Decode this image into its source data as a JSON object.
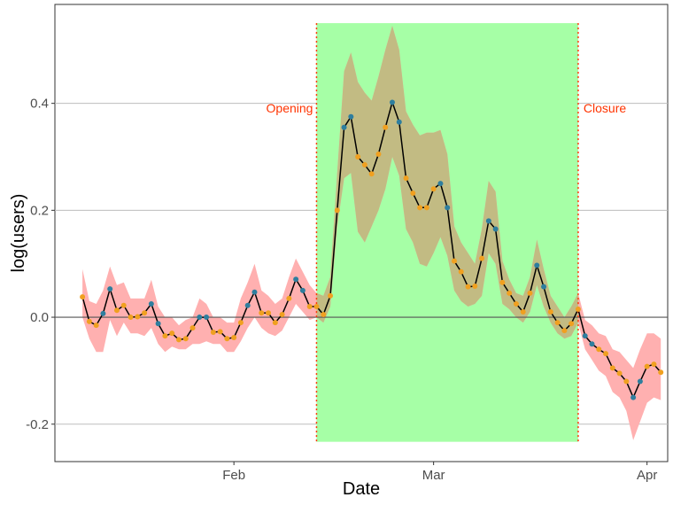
{
  "chart_data": {
    "type": "line",
    "title": "",
    "xlabel": "Date",
    "ylabel": "log(users)",
    "x_ticks": [
      {
        "label": "Feb",
        "x": "2020-02-01"
      },
      {
        "label": "Mar",
        "x": "2020-03-01"
      },
      {
        "label": "Apr",
        "x": "2020-04-01"
      }
    ],
    "y_ticks": [
      {
        "label": "-0.2",
        "value": -0.2
      },
      {
        "label": "0.0",
        "value": 0.0
      },
      {
        "label": "0.2",
        "value": 0.2
      },
      {
        "label": "0.4",
        "value": 0.4
      }
    ],
    "xlim": [
      "2020-01-06",
      "2020-04-04"
    ],
    "ylim": [
      -0.27,
      0.585
    ],
    "grid": "horizontal major",
    "zero_line": true,
    "shaded_period": {
      "start": "2020-02-13",
      "end": "2020-03-22",
      "color": "#a6ffa6"
    },
    "events": [
      {
        "label": "Opening",
        "date": "2020-02-13",
        "color": "#ff3300"
      },
      {
        "label": "Closure",
        "date": "2020-03-22",
        "color": "#ff3300"
      }
    ],
    "colors": {
      "line": "#000000",
      "ci_band": "#ffb0b0",
      "ci_band_inside": "#c2bb83",
      "point_a": "#f0a020",
      "point_b": "#2e7e9e"
    },
    "series": [
      {
        "points": [
          {
            "x": "2020-01-10",
            "y": 0.038,
            "g": "a",
            "lo": 0.0,
            "hi": 0.09
          },
          {
            "x": "2020-01-11",
            "y": -0.008,
            "g": "a",
            "lo": -0.04,
            "hi": 0.03
          },
          {
            "x": "2020-01-12",
            "y": -0.015,
            "g": "a",
            "lo": -0.065,
            "hi": 0.025
          },
          {
            "x": "2020-01-13",
            "y": 0.007,
            "g": "b",
            "lo": -0.065,
            "hi": 0.05
          },
          {
            "x": "2020-01-14",
            "y": 0.053,
            "g": "b",
            "lo": -0.005,
            "hi": 0.095
          },
          {
            "x": "2020-01-15",
            "y": 0.013,
            "g": "a",
            "lo": -0.035,
            "hi": 0.06
          },
          {
            "x": "2020-01-16",
            "y": 0.022,
            "g": "a",
            "lo": -0.01,
            "hi": 0.065
          },
          {
            "x": "2020-01-17",
            "y": 0.0,
            "g": "a",
            "lo": -0.03,
            "hi": 0.035
          },
          {
            "x": "2020-01-18",
            "y": 0.001,
            "g": "a",
            "lo": -0.03,
            "hi": 0.035
          },
          {
            "x": "2020-01-19",
            "y": 0.008,
            "g": "a",
            "lo": -0.035,
            "hi": 0.035
          },
          {
            "x": "2020-01-20",
            "y": 0.025,
            "g": "b",
            "lo": -0.02,
            "hi": 0.07
          },
          {
            "x": "2020-01-21",
            "y": -0.012,
            "g": "b",
            "lo": -0.05,
            "hi": 0.02
          },
          {
            "x": "2020-01-22",
            "y": -0.035,
            "g": "a",
            "lo": -0.065,
            "hi": 0.0
          },
          {
            "x": "2020-01-23",
            "y": -0.03,
            "g": "a",
            "lo": -0.055,
            "hi": 0.0
          },
          {
            "x": "2020-01-24",
            "y": -0.042,
            "g": "a",
            "lo": -0.06,
            "hi": -0.015
          },
          {
            "x": "2020-01-25",
            "y": -0.04,
            "g": "a",
            "lo": -0.06,
            "hi": -0.005
          },
          {
            "x": "2020-01-26",
            "y": -0.02,
            "g": "a",
            "lo": -0.05,
            "hi": 0.0
          },
          {
            "x": "2020-01-27",
            "y": 0.0,
            "g": "b",
            "lo": -0.05,
            "hi": 0.035
          },
          {
            "x": "2020-01-28",
            "y": 0.0,
            "g": "b",
            "lo": -0.045,
            "hi": 0.025
          },
          {
            "x": "2020-01-29",
            "y": -0.028,
            "g": "a",
            "lo": -0.05,
            "hi": 0.0
          },
          {
            "x": "2020-01-30",
            "y": -0.027,
            "g": "a",
            "lo": -0.05,
            "hi": 0.0
          },
          {
            "x": "2020-01-31",
            "y": -0.04,
            "g": "a",
            "lo": -0.065,
            "hi": -0.01
          },
          {
            "x": "2020-02-01",
            "y": -0.038,
            "g": "a",
            "lo": -0.065,
            "hi": -0.01
          },
          {
            "x": "2020-02-02",
            "y": -0.01,
            "g": "a",
            "lo": -0.045,
            "hi": 0.035
          },
          {
            "x": "2020-02-03",
            "y": 0.022,
            "g": "b",
            "lo": -0.02,
            "hi": 0.065
          },
          {
            "x": "2020-02-04",
            "y": 0.047,
            "g": "b",
            "lo": 0.0,
            "hi": 0.1
          },
          {
            "x": "2020-02-05",
            "y": 0.008,
            "g": "a",
            "lo": -0.02,
            "hi": 0.05
          },
          {
            "x": "2020-02-06",
            "y": 0.008,
            "g": "a",
            "lo": -0.03,
            "hi": 0.04
          },
          {
            "x": "2020-02-07",
            "y": -0.01,
            "g": "a",
            "lo": -0.035,
            "hi": 0.025
          },
          {
            "x": "2020-02-08",
            "y": 0.005,
            "g": "a",
            "lo": -0.025,
            "hi": 0.035
          },
          {
            "x": "2020-02-09",
            "y": 0.035,
            "g": "a",
            "lo": 0.0,
            "hi": 0.075
          },
          {
            "x": "2020-02-10",
            "y": 0.071,
            "g": "b",
            "lo": 0.025,
            "hi": 0.11
          },
          {
            "x": "2020-02-11",
            "y": 0.05,
            "g": "b",
            "lo": 0.01,
            "hi": 0.085
          },
          {
            "x": "2020-02-12",
            "y": 0.02,
            "g": "a",
            "lo": -0.005,
            "hi": 0.06
          },
          {
            "x": "2020-02-13",
            "y": 0.02,
            "g": "a",
            "lo": 0.0,
            "hi": 0.045
          },
          {
            "x": "2020-02-14",
            "y": 0.005,
            "g": "a",
            "lo": -0.01,
            "hi": 0.04
          },
          {
            "x": "2020-02-15",
            "y": 0.04,
            "g": "a",
            "lo": 0.02,
            "hi": 0.075
          },
          {
            "x": "2020-02-16",
            "y": 0.2,
            "g": "a",
            "lo": 0.17,
            "hi": 0.27
          },
          {
            "x": "2020-02-17",
            "y": 0.355,
            "g": "b",
            "lo": 0.26,
            "hi": 0.46
          },
          {
            "x": "2020-02-18",
            "y": 0.375,
            "g": "b",
            "lo": 0.27,
            "hi": 0.495
          },
          {
            "x": "2020-02-19",
            "y": 0.3,
            "g": "a",
            "lo": 0.16,
            "hi": 0.44
          },
          {
            "x": "2020-02-20",
            "y": 0.285,
            "g": "a",
            "lo": 0.14,
            "hi": 0.42
          },
          {
            "x": "2020-02-21",
            "y": 0.268,
            "g": "a",
            "lo": 0.17,
            "hi": 0.405
          },
          {
            "x": "2020-02-22",
            "y": 0.305,
            "g": "a",
            "lo": 0.2,
            "hi": 0.45
          },
          {
            "x": "2020-02-23",
            "y": 0.355,
            "g": "a",
            "lo": 0.24,
            "hi": 0.5
          },
          {
            "x": "2020-02-24",
            "y": 0.402,
            "g": "b",
            "lo": 0.3,
            "hi": 0.545
          },
          {
            "x": "2020-02-25",
            "y": 0.365,
            "g": "b",
            "lo": 0.265,
            "hi": 0.5
          },
          {
            "x": "2020-02-26",
            "y": 0.26,
            "g": "a",
            "lo": 0.165,
            "hi": 0.385
          },
          {
            "x": "2020-02-27",
            "y": 0.232,
            "g": "a",
            "lo": 0.14,
            "hi": 0.36
          },
          {
            "x": "2020-02-28",
            "y": 0.205,
            "g": "a",
            "lo": 0.1,
            "hi": 0.34
          },
          {
            "x": "2020-02-29",
            "y": 0.205,
            "g": "a",
            "lo": 0.095,
            "hi": 0.345
          },
          {
            "x": "2020-03-01",
            "y": 0.24,
            "g": "a",
            "lo": 0.12,
            "hi": 0.345
          },
          {
            "x": "2020-03-02",
            "y": 0.25,
            "g": "b",
            "lo": 0.15,
            "hi": 0.35
          },
          {
            "x": "2020-03-03",
            "y": 0.205,
            "g": "b",
            "lo": 0.115,
            "hi": 0.305
          },
          {
            "x": "2020-03-04",
            "y": 0.105,
            "g": "a",
            "lo": 0.05,
            "hi": 0.17
          },
          {
            "x": "2020-03-05",
            "y": 0.085,
            "g": "a",
            "lo": 0.03,
            "hi": 0.14
          },
          {
            "x": "2020-03-06",
            "y": 0.057,
            "g": "a",
            "lo": 0.02,
            "hi": 0.12
          },
          {
            "x": "2020-03-07",
            "y": 0.058,
            "g": "a",
            "lo": 0.025,
            "hi": 0.1
          },
          {
            "x": "2020-03-08",
            "y": 0.11,
            "g": "a",
            "lo": 0.04,
            "hi": 0.165
          },
          {
            "x": "2020-03-09",
            "y": 0.18,
            "g": "b",
            "lo": 0.12,
            "hi": 0.255
          },
          {
            "x": "2020-03-10",
            "y": 0.165,
            "g": "b",
            "lo": 0.1,
            "hi": 0.235
          },
          {
            "x": "2020-03-11",
            "y": 0.065,
            "g": "a",
            "lo": 0.025,
            "hi": 0.105
          },
          {
            "x": "2020-03-12",
            "y": 0.045,
            "g": "a",
            "lo": 0.015,
            "hi": 0.07
          },
          {
            "x": "2020-03-13",
            "y": 0.025,
            "g": "a",
            "lo": 0.0,
            "hi": 0.045
          },
          {
            "x": "2020-03-14",
            "y": 0.01,
            "g": "a",
            "lo": -0.01,
            "hi": 0.04
          },
          {
            "x": "2020-03-15",
            "y": 0.045,
            "g": "a",
            "lo": 0.01,
            "hi": 0.075
          },
          {
            "x": "2020-03-16",
            "y": 0.097,
            "g": "b",
            "lo": 0.06,
            "hi": 0.145
          },
          {
            "x": "2020-03-17",
            "y": 0.057,
            "g": "b",
            "lo": 0.02,
            "hi": 0.09
          },
          {
            "x": "2020-03-18",
            "y": 0.01,
            "g": "a",
            "lo": -0.01,
            "hi": 0.04
          },
          {
            "x": "2020-03-19",
            "y": -0.01,
            "g": "a",
            "lo": -0.03,
            "hi": 0.02
          },
          {
            "x": "2020-03-20",
            "y": -0.025,
            "g": "a",
            "lo": -0.04,
            "hi": 0.0
          },
          {
            "x": "2020-03-21",
            "y": -0.012,
            "g": "a",
            "lo": -0.035,
            "hi": 0.02
          },
          {
            "x": "2020-03-22",
            "y": 0.015,
            "g": "a",
            "lo": -0.01,
            "hi": 0.045
          },
          {
            "x": "2020-03-23",
            "y": -0.035,
            "g": "b",
            "lo": -0.06,
            "hi": -0.005
          },
          {
            "x": "2020-03-24",
            "y": -0.05,
            "g": "b",
            "lo": -0.08,
            "hi": -0.015
          },
          {
            "x": "2020-03-25",
            "y": -0.06,
            "g": "a",
            "lo": -0.1,
            "hi": -0.03
          },
          {
            "x": "2020-03-26",
            "y": -0.068,
            "g": "a",
            "lo": -0.11,
            "hi": -0.035
          },
          {
            "x": "2020-03-27",
            "y": -0.095,
            "g": "a",
            "lo": -0.14,
            "hi": -0.06
          },
          {
            "x": "2020-03-28",
            "y": -0.105,
            "g": "a",
            "lo": -0.15,
            "hi": -0.065
          },
          {
            "x": "2020-03-29",
            "y": -0.12,
            "g": "a",
            "lo": -0.175,
            "hi": -0.08
          },
          {
            "x": "2020-03-30",
            "y": -0.15,
            "g": "b",
            "lo": -0.23,
            "hi": -0.095
          },
          {
            "x": "2020-03-31",
            "y": -0.12,
            "g": "b",
            "lo": -0.195,
            "hi": -0.06
          },
          {
            "x": "2020-04-01",
            "y": -0.092,
            "g": "a",
            "lo": -0.16,
            "hi": -0.03
          },
          {
            "x": "2020-04-02",
            "y": -0.088,
            "g": "a",
            "lo": -0.15,
            "hi": -0.03
          },
          {
            "x": "2020-04-03",
            "y": -0.103,
            "g": "a",
            "lo": -0.155,
            "hi": -0.04
          }
        ]
      }
    ]
  }
}
